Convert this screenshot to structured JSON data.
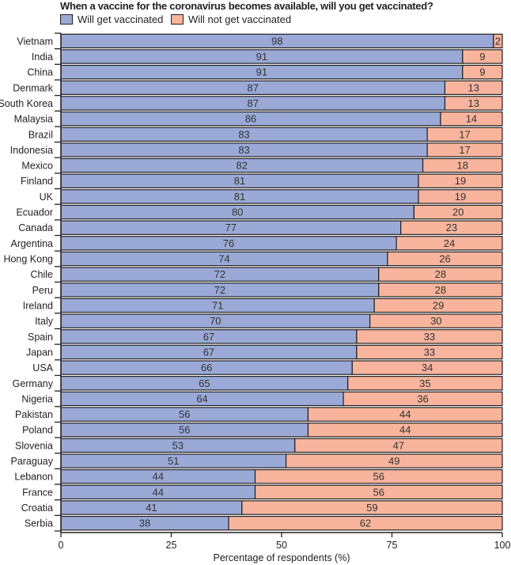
{
  "chart_data": {
    "type": "bar",
    "stacked": true,
    "orientation": "horizontal",
    "title": "When a vaccine for the coronavirus becomes available, will you get vaccinated?",
    "xlabel": "Percentage of respondents (%)",
    "ylabel": "",
    "xlim": [
      0,
      100
    ],
    "xticks": [
      "0",
      "25",
      "50",
      "75",
      "100"
    ],
    "legend_placement": "top-left",
    "categories": [
      "Vietnam",
      "India",
      "China",
      "Denmark",
      "South Korea",
      "Malaysia",
      "Brazil",
      "Indonesia",
      "Mexico",
      "Finland",
      "UK",
      "Ecuador",
      "Canada",
      "Argentina",
      "Hong Kong",
      "Chile",
      "Peru",
      "Ireland",
      "Italy",
      "Spain",
      "Japan",
      "USA",
      "Germany",
      "Nigeria",
      "Pakistan",
      "Poland",
      "Slovenia",
      "Paraguay",
      "Lebanon",
      "France",
      "Croatia",
      "Serbia"
    ],
    "series": [
      {
        "name": "Will get vaccinated",
        "color": "#9aa9d6",
        "values": [
          98,
          91,
          91,
          87,
          87,
          86,
          83,
          83,
          82,
          81,
          81,
          80,
          77,
          76,
          74,
          72,
          72,
          71,
          70,
          67,
          67,
          66,
          65,
          64,
          56,
          56,
          53,
          51,
          44,
          44,
          41,
          38
        ]
      },
      {
        "name": "Will not get vaccinated",
        "color": "#f8b49c",
        "values": [
          2,
          9,
          9,
          13,
          13,
          14,
          17,
          17,
          18,
          19,
          19,
          20,
          23,
          24,
          26,
          28,
          28,
          29,
          30,
          33,
          33,
          34,
          35,
          36,
          44,
          44,
          47,
          49,
          56,
          56,
          59,
          62
        ]
      }
    ]
  }
}
